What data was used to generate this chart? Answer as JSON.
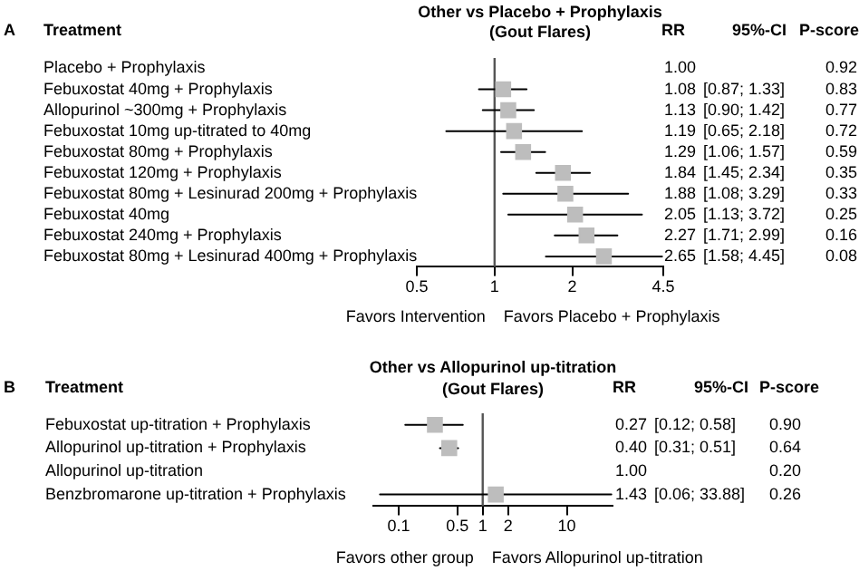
{
  "chart_data": [
    {
      "type": "scatter",
      "title": "Other vs Placebo + Prophylaxis",
      "subtitle": "(Gout Flares)",
      "orientation": "horizontal",
      "categories": [
        "Placebo + Prophylaxis",
        "Febuxostat 40mg + Prophylaxis",
        "Allopurinol ~300mg + Prophylaxis",
        "Febuxostat 10mg up-titrated to 40mg",
        "Febuxostat 80mg + Prophylaxis",
        "Febuxostat 120mg + Prophylaxis",
        "Febuxostat 80mg + Lesinurad 200mg + Prophylaxis",
        "Febuxostat 40mg",
        "Febuxostat 240mg + Prophylaxis",
        "Febuxostat 80mg + Lesinurad 400mg + Prophylaxis"
      ],
      "values": [
        null,
        1.08,
        1.13,
        1.19,
        1.29,
        1.84,
        1.88,
        2.05,
        2.27,
        2.65
      ],
      "errors": [
        null,
        [
          0.87,
          1.33
        ],
        [
          0.9,
          1.42
        ],
        [
          0.65,
          2.18
        ],
        [
          1.06,
          1.57
        ],
        [
          1.45,
          2.34
        ],
        [
          1.08,
          3.29
        ],
        [
          1.13,
          3.72
        ],
        [
          1.71,
          2.99
        ],
        [
          1.58,
          4.45
        ]
      ],
      "value_labels": [
        "1.00",
        "1.08",
        "1.13",
        "1.19",
        "1.29",
        "1.84",
        "1.88",
        "2.05",
        "2.27",
        "2.65"
      ],
      "color": "#bdbdbd",
      "marker": "square",
      "log": "x",
      "xlim": [
        0.5,
        4.5
      ],
      "xticks": [
        0.5,
        1,
        2,
        4.5
      ],
      "ref_lines": [
        {
          "axis": "x",
          "value": 1
        }
      ],
      "grid": false,
      "legend": false,
      "annotations": [
        "A",
        "Treatment",
        "RR",
        "95%-CI",
        "P-score",
        "Favors Intervention",
        "Favors Placebo + Prophylaxis",
        "[0.87; 1.33]",
        "[0.90; 1.42]",
        "[0.65; 2.18]",
        "[1.06; 1.57]",
        "[1.45; 2.34]",
        "[1.08; 3.29]",
        "[1.13; 3.72]",
        "[1.71; 2.99]",
        "[1.58; 4.45]",
        "0.92",
        "0.83",
        "0.77",
        "0.72",
        "0.59",
        "0.35",
        "0.33",
        "0.25",
        "0.16",
        "0.08"
      ]
    },
    {
      "type": "scatter",
      "title": "Other vs Allopurinol up-titration",
      "subtitle": "(Gout Flares)",
      "orientation": "horizontal",
      "categories": [
        "Febuxostat up-titration + Prophylaxis",
        "Allopurinol up-titration + Prophylaxis",
        "Allopurinol up-titration",
        "Benzbromarone up-titration + Prophylaxis"
      ],
      "values": [
        0.27,
        0.4,
        null,
        1.43
      ],
      "errors": [
        [
          0.12,
          0.58
        ],
        [
          0.31,
          0.51
        ],
        null,
        [
          0.06,
          33.88
        ]
      ],
      "value_labels": [
        "0.27",
        "0.40",
        "1.00",
        "1.43"
      ],
      "color": "#bdbdbd",
      "marker": "square",
      "log": "x",
      "xlim": [
        0.05,
        35
      ],
      "xticks": [
        0.1,
        0.5,
        1,
        2,
        10
      ],
      "ref_lines": [
        {
          "axis": "x",
          "value": 1
        }
      ],
      "grid": false,
      "legend": false,
      "annotations": [
        "B",
        "Treatment",
        "RR",
        "95%-CI",
        "P-score",
        "Favors other group",
        "Favors Allopurinol up-titration",
        "[0.12; 0.58]",
        "[0.31; 0.51]",
        "[0.06; 33.88]",
        "0.90",
        "0.64",
        "0.20",
        "0.26"
      ]
    }
  ]
}
